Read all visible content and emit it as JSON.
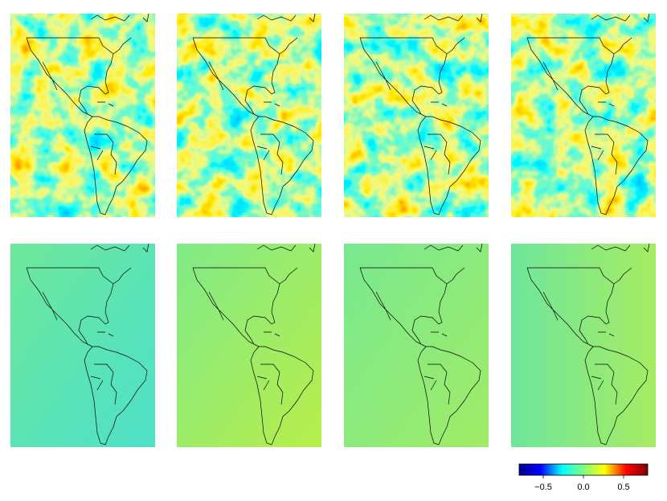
{
  "colorbar": {
    "lim": [
      -0.8,
      0.8
    ],
    "ticks": [
      {
        "value": -0.5,
        "label": "−0.5"
      },
      {
        "value": 0,
        "label": "0.0"
      },
      0.5
    ],
    "colors": [
      "#00008f",
      "#0000ff",
      "#00ffff",
      "#7fff7f",
      "#ffff00",
      "#ff0000",
      "#7f0000"
    ]
  }
}
